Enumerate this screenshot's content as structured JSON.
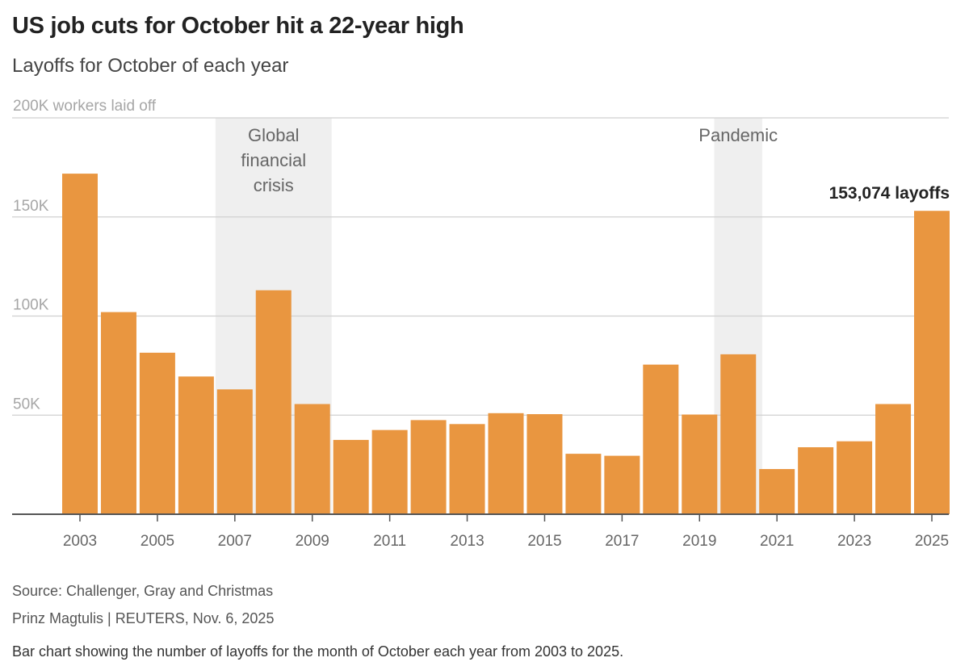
{
  "header": {
    "title": "US job cuts for October hit a 22-year high",
    "subtitle": "Layoffs for October of each year"
  },
  "footer": {
    "source": "Source: Challenger, Gray and Christmas",
    "credit": "Prinz Magtulis | REUTERS, Nov. 6, 2025",
    "description": "Bar chart showing the number of layoffs for the month of October each year from 2003 to 2025."
  },
  "chart_data": {
    "type": "bar",
    "ylabel": "200K workers laid off",
    "ylim": [
      0,
      200000
    ],
    "y_ticks": [
      {
        "value": 200000,
        "label": ""
      },
      {
        "value": 150000,
        "label": "150K"
      },
      {
        "value": 100000,
        "label": "100K"
      },
      {
        "value": 50000,
        "label": "50K"
      }
    ],
    "categories": [
      "2003",
      "2004",
      "2005",
      "2006",
      "2007",
      "2008",
      "2009",
      "2010",
      "2011",
      "2012",
      "2013",
      "2014",
      "2015",
      "2016",
      "2017",
      "2018",
      "2019",
      "2020",
      "2021",
      "2022",
      "2023",
      "2024",
      "2025"
    ],
    "x_tick_labels": [
      "2003",
      "",
      "2005",
      "",
      "2007",
      "",
      "2009",
      "",
      "2011",
      "",
      "2013",
      "",
      "2015",
      "",
      "2017",
      "",
      "2019",
      "",
      "2021",
      "",
      "2023",
      "",
      "2025"
    ],
    "values": [
      171853,
      102000,
      81500,
      69500,
      63000,
      113000,
      55600,
      37500,
      42500,
      47500,
      45500,
      51000,
      50500,
      30500,
      29500,
      75500,
      50300,
      80700,
      22800,
      33800,
      36800,
      55600,
      153074
    ],
    "bands": [
      {
        "label_lines": [
          "Global",
          "financial",
          "crisis"
        ],
        "start": "2007",
        "end": "2009"
      },
      {
        "label_lines": [
          "Pandemic"
        ],
        "start": "2020",
        "end": "2020"
      }
    ],
    "annotations": [
      {
        "category": "2025",
        "text": "153,074 layoffs"
      }
    ],
    "colors": {
      "bar": "#e99640",
      "band": "#efefef",
      "grid": "#d0d0d0",
      "axis": "#555555"
    },
    "grid": true,
    "legend": "none"
  }
}
